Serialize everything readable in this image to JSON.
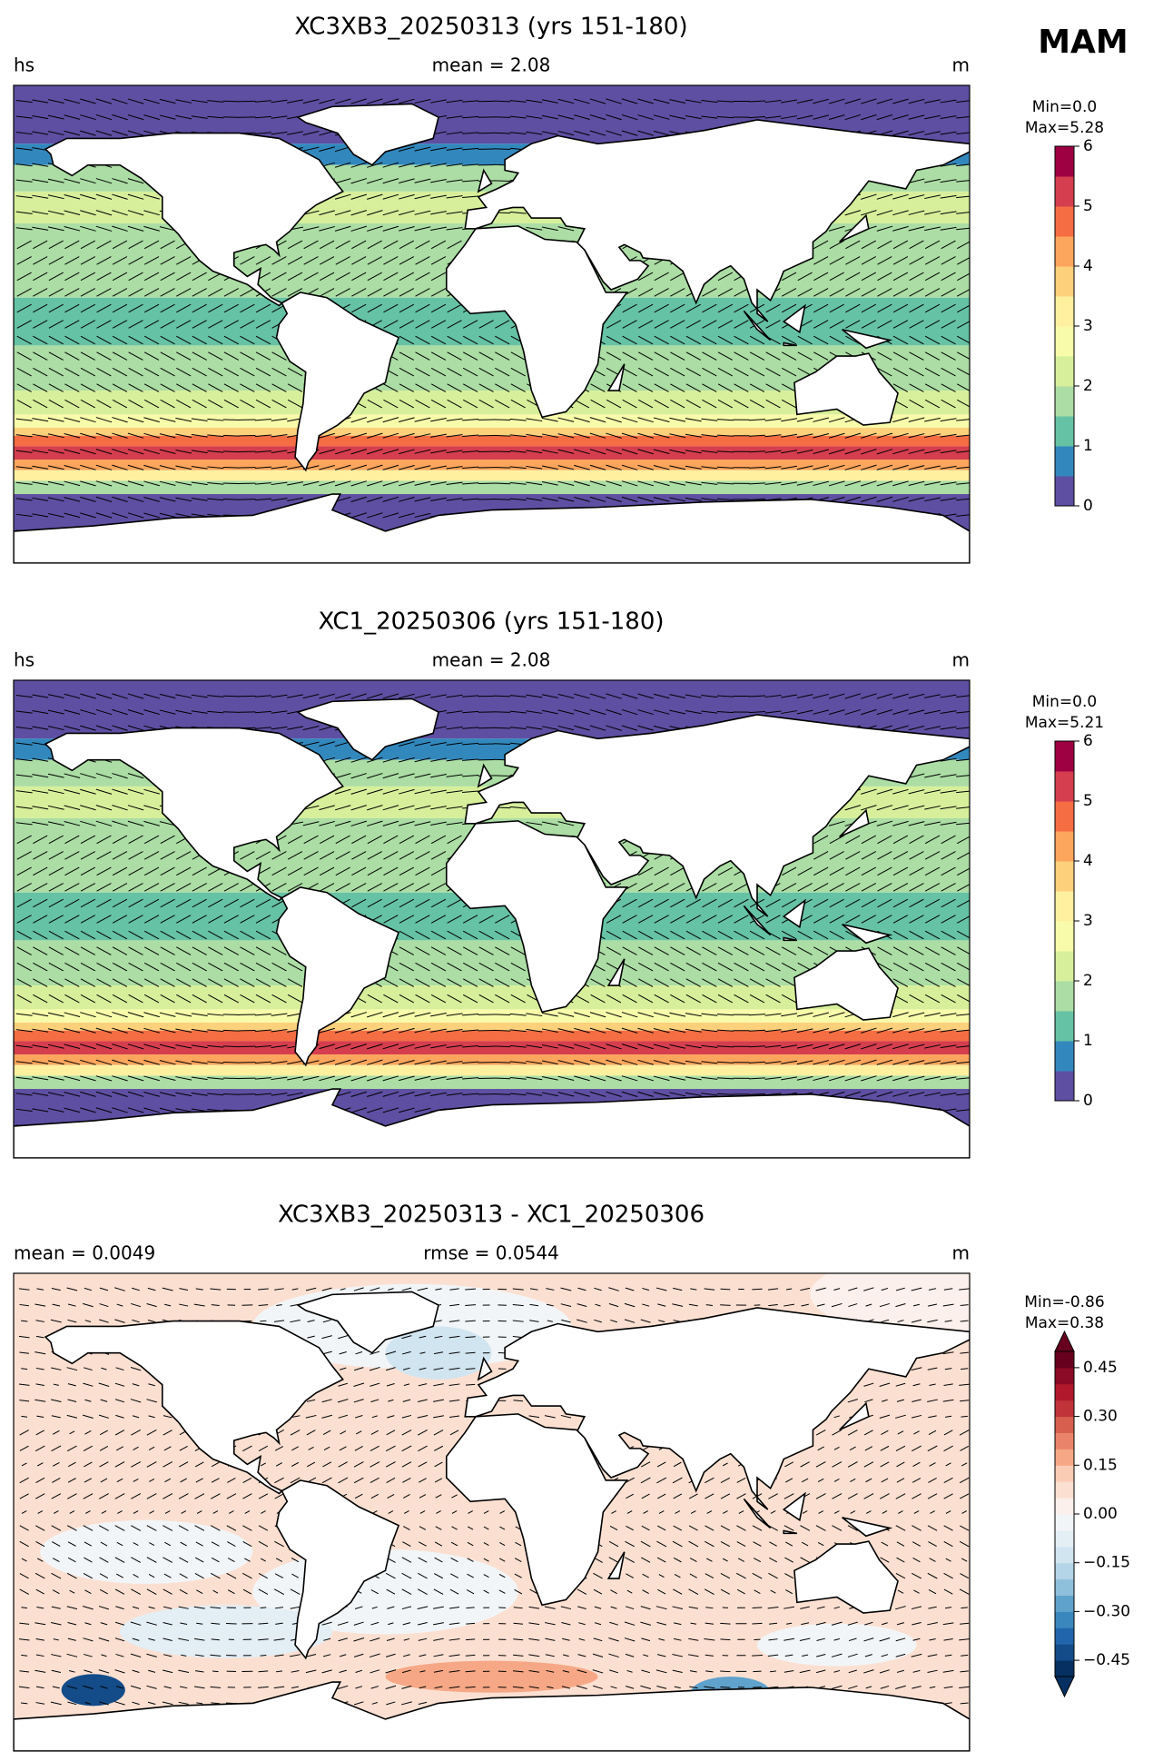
{
  "label": "MAM",
  "panels": [
    {
      "title": "XC3XB3_20250313 (yrs 151-180)",
      "left_label": "hs",
      "center_label": "mean = 2.08",
      "right_label": "m",
      "colorbar": {
        "min_label": "Min=0.0",
        "max_label": "Max=5.28",
        "lim": [
          0,
          6
        ],
        "ticks": [
          0,
          1,
          2,
          3,
          4,
          5,
          6
        ],
        "colors": [
          "#5e4fa2",
          "#3288bd",
          "#66c2a5",
          "#abdda4",
          "#d7ef9b",
          "#f7fbaa",
          "#fff0a0",
          "#fdd07c",
          "#fca55d",
          "#f46d43",
          "#d53e4f",
          "#9e0142"
        ]
      }
    },
    {
      "title": "XC1_20250306 (yrs 151-180)",
      "left_label": "hs",
      "center_label": "mean = 2.08",
      "right_label": "m",
      "colorbar": {
        "min_label": "Min=0.0",
        "max_label": "Max=5.21",
        "lim": [
          0,
          6
        ],
        "ticks": [
          0,
          1,
          2,
          3,
          4,
          5,
          6
        ],
        "colors": [
          "#5e4fa2",
          "#3288bd",
          "#66c2a5",
          "#abdda4",
          "#d7ef9b",
          "#f7fbaa",
          "#fff0a0",
          "#fdd07c",
          "#fca55d",
          "#f46d43",
          "#d53e4f",
          "#9e0142"
        ]
      }
    },
    {
      "title": "XC3XB3_20250313 - XC1_20250306",
      "left_label": "mean = 0.0049",
      "center_label": "rmse = 0.0544",
      "right_label": "m",
      "colorbar": {
        "min_label": "Min=-0.86",
        "max_label": "Max=0.38",
        "lim": [
          -0.5,
          0.5
        ],
        "extend": "both",
        "ticks": [
          {
            "value": -0.45,
            "label": "−0.45"
          },
          {
            "value": -0.3,
            "label": "−0.30"
          },
          {
            "value": -0.15,
            "label": "−0.15"
          },
          {
            "value": 0,
            "label": "0.00"
          },
          0.15,
          {
            "value": 0.3,
            "label": "0.30"
          },
          0.45
        ],
        "colors": [
          "#053061",
          "#134c88",
          "#2166ac",
          "#3a87bd",
          "#5fa2cb",
          "#8ebfdb",
          "#b4d5e7",
          "#d1e5f0",
          "#e3eef5",
          "#f2f5f7",
          "#fbf0eb",
          "#fbe0d2",
          "#fbccb4",
          "#f6a886",
          "#e9846a",
          "#d6604d",
          "#bf3339",
          "#b2182b",
          "#8b0a25",
          "#67001f"
        ]
      }
    }
  ]
}
